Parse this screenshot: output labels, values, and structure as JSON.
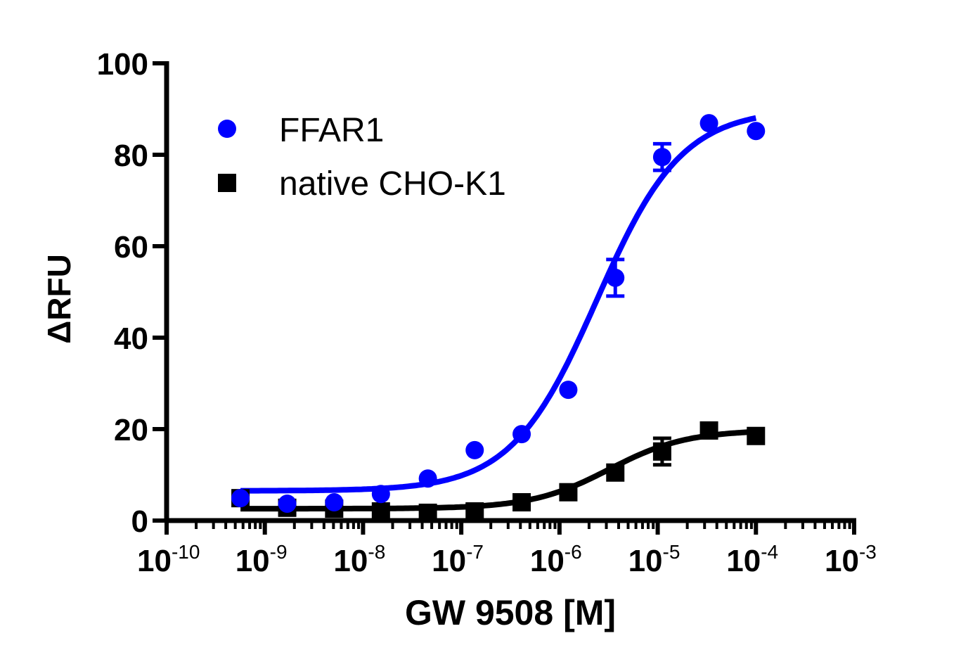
{
  "chart_data": {
    "type": "scatter",
    "title": "",
    "xlabel": "GW 9508 [M]",
    "ylabel": "ΔRFU",
    "xscale": "log",
    "xlim": [
      1e-10,
      0.001
    ],
    "ylim": [
      0,
      100
    ],
    "x_tick_labels": [
      {
        "base": "10",
        "exp": "-10"
      },
      {
        "base": "10",
        "exp": "-9"
      },
      {
        "base": "10",
        "exp": "-8"
      },
      {
        "base": "10",
        "exp": "-7"
      },
      {
        "base": "10",
        "exp": "-6"
      },
      {
        "base": "10",
        "exp": "-5"
      },
      {
        "base": "10",
        "exp": "-4"
      },
      {
        "base": "10",
        "exp": "-3"
      }
    ],
    "y_ticks": [
      "0",
      "20",
      "40",
      "60",
      "80",
      "100"
    ],
    "grid": false,
    "legend": "top-left",
    "x": [
      5.65e-10,
      1.69e-09,
      5.08e-09,
      1.52e-08,
      4.57e-08,
      1.37e-07,
      4.12e-07,
      1.23e-06,
      3.7e-06,
      1.11e-05,
      3.33e-05,
      0.0001
    ],
    "series": [
      {
        "name": "FFAR1",
        "color": "#0000ff",
        "marker": "circle",
        "values": [
          4.9,
          3.7,
          4.0,
          5.8,
          9.2,
          15.4,
          18.9,
          28.6,
          53.1,
          79.5,
          86.9,
          85.2
        ],
        "errors": [
          0,
          0,
          0,
          0,
          0,
          0,
          0,
          0,
          4.0,
          2.9,
          0,
          0
        ],
        "fit": {
          "bottom": 6.5,
          "top": 90,
          "ec50": 2.4e-06,
          "hill": 1.0
        }
      },
      {
        "name": "native CHO-K1",
        "color": "#000000",
        "marker": "square",
        "values": [
          4.9,
          2.8,
          2.6,
          2.0,
          1.7,
          2.0,
          4.0,
          6.2,
          10.5,
          15.1,
          19.7,
          18.5
        ],
        "errors": [
          0,
          0,
          0,
          0,
          0,
          0,
          0,
          0,
          0,
          2.9,
          0,
          0
        ],
        "fit": {
          "bottom": 2.6,
          "top": 19.8,
          "ec50": 3.2e-06,
          "hill": 1.1
        }
      }
    ]
  }
}
